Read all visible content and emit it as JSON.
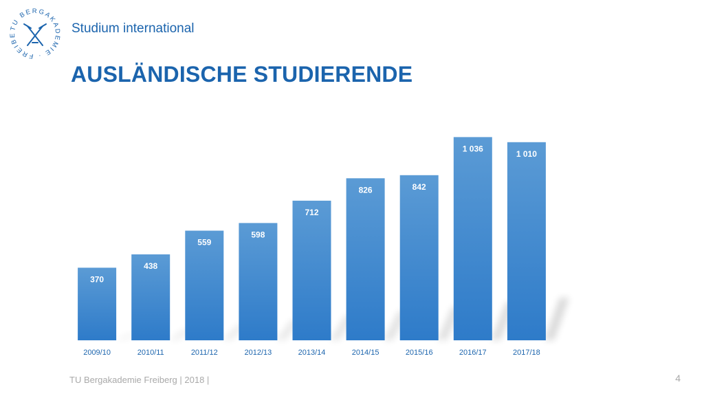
{
  "header": {
    "subtitle": "Studium international",
    "title": "AUSLÄNDISCHE STUDIERENDE"
  },
  "logo": {
    "text": "TU BERGAKADEMIE · FREIBERG ·",
    "icon": "crossed-hammers-icon",
    "color": "#1b64ad"
  },
  "chart_data": {
    "type": "bar",
    "categories": [
      "2009/10",
      "2010/11",
      "2011/12",
      "2012/13",
      "2013/14",
      "2014/15",
      "2015/16",
      "2016/17",
      "2017/18"
    ],
    "values": [
      370,
      438,
      559,
      598,
      712,
      826,
      842,
      1036,
      1010
    ],
    "value_labels": [
      "370",
      "438",
      "559",
      "598",
      "712",
      "826",
      "842",
      "1 036",
      "1 010"
    ],
    "title": "",
    "xlabel": "",
    "ylabel": "",
    "ylim": [
      0,
      1100
    ],
    "grid": false,
    "bar_color_top": "#5b9bd5",
    "bar_color_bottom": "#2e7bc9",
    "label_color": "#ffffff",
    "tick_color": "#1b64ad"
  },
  "footer": {
    "text": "TU Bergakademie Freiberg | 2018 |",
    "page": "4"
  }
}
